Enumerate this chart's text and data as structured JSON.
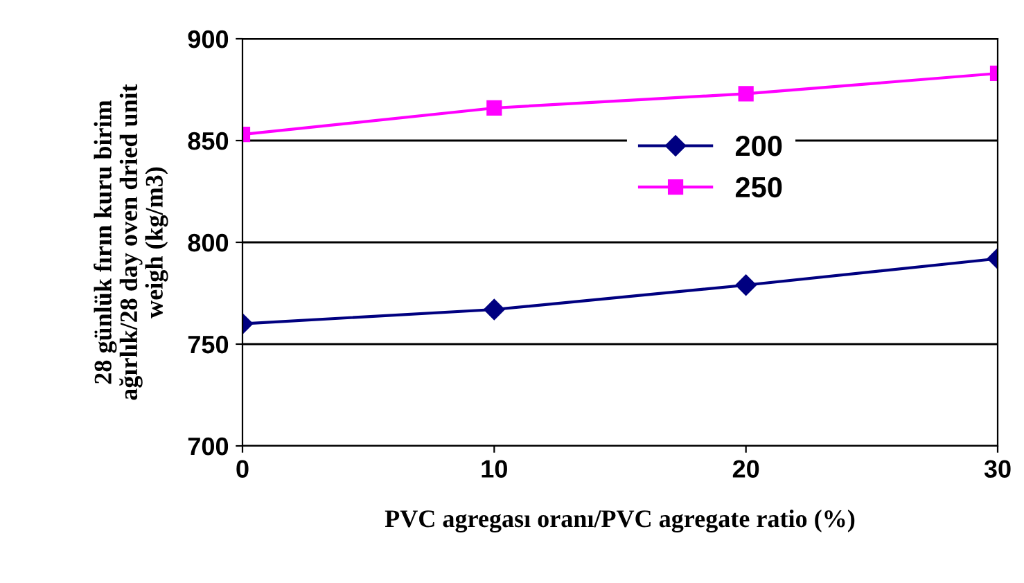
{
  "chart_data": {
    "type": "line",
    "xlabel": "PVC agregası oranı/PVC agregate ratio (%)",
    "ylabel": "28 günlük fırın kuru birim\nağırlık/28 day oven dried unit\nweigh (kg/m3)",
    "x": [
      0,
      10,
      20,
      30
    ],
    "series": [
      {
        "name": "200",
        "color": "#000080",
        "values": [
          760,
          767,
          779,
          792
        ],
        "marker": "diamond"
      },
      {
        "name": "250",
        "color": "#ff00ff",
        "values": [
          853,
          866,
          873,
          883
        ],
        "marker": "square"
      }
    ],
    "xlim": [
      0,
      30
    ],
    "xticks": [
      0,
      10,
      20,
      30
    ],
    "ylim": [
      700,
      900
    ],
    "yticks": [
      700,
      750,
      800,
      850,
      900
    ],
    "grid": "y",
    "legend": "right",
    "line_style": "solid"
  }
}
